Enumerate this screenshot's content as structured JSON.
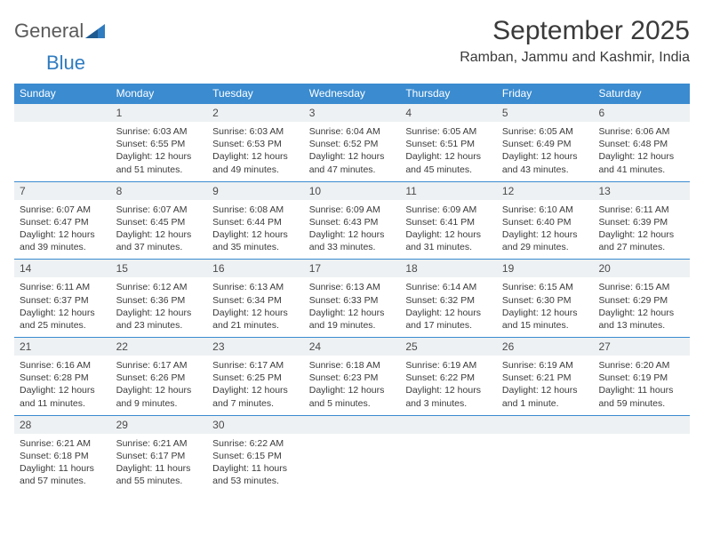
{
  "logo": {
    "text1": "General",
    "text2": "Blue"
  },
  "title": "September 2025",
  "location": "Ramban, Jammu and Kashmir, India",
  "colors": {
    "header_bg": "#3a8bd0",
    "header_text": "#ffffff",
    "daynum_bg": "#eef1f3",
    "body_text": "#3a3a3a",
    "divider": "#3a8bd0",
    "logo_blue": "#2f7cc0"
  },
  "typography": {
    "title_fontsize": 30,
    "location_fontsize": 16,
    "dow_fontsize": 12,
    "body_fontsize": 10.5
  },
  "days_of_week": [
    "Sunday",
    "Monday",
    "Tuesday",
    "Wednesday",
    "Thursday",
    "Friday",
    "Saturday"
  ],
  "weeks": [
    [
      {
        "n": "",
        "sr": "",
        "ss": "",
        "dl": ""
      },
      {
        "n": "1",
        "sr": "Sunrise: 6:03 AM",
        "ss": "Sunset: 6:55 PM",
        "dl": "Daylight: 12 hours and 51 minutes."
      },
      {
        "n": "2",
        "sr": "Sunrise: 6:03 AM",
        "ss": "Sunset: 6:53 PM",
        "dl": "Daylight: 12 hours and 49 minutes."
      },
      {
        "n": "3",
        "sr": "Sunrise: 6:04 AM",
        "ss": "Sunset: 6:52 PM",
        "dl": "Daylight: 12 hours and 47 minutes."
      },
      {
        "n": "4",
        "sr": "Sunrise: 6:05 AM",
        "ss": "Sunset: 6:51 PM",
        "dl": "Daylight: 12 hours and 45 minutes."
      },
      {
        "n": "5",
        "sr": "Sunrise: 6:05 AM",
        "ss": "Sunset: 6:49 PM",
        "dl": "Daylight: 12 hours and 43 minutes."
      },
      {
        "n": "6",
        "sr": "Sunrise: 6:06 AM",
        "ss": "Sunset: 6:48 PM",
        "dl": "Daylight: 12 hours and 41 minutes."
      }
    ],
    [
      {
        "n": "7",
        "sr": "Sunrise: 6:07 AM",
        "ss": "Sunset: 6:47 PM",
        "dl": "Daylight: 12 hours and 39 minutes."
      },
      {
        "n": "8",
        "sr": "Sunrise: 6:07 AM",
        "ss": "Sunset: 6:45 PM",
        "dl": "Daylight: 12 hours and 37 minutes."
      },
      {
        "n": "9",
        "sr": "Sunrise: 6:08 AM",
        "ss": "Sunset: 6:44 PM",
        "dl": "Daylight: 12 hours and 35 minutes."
      },
      {
        "n": "10",
        "sr": "Sunrise: 6:09 AM",
        "ss": "Sunset: 6:43 PM",
        "dl": "Daylight: 12 hours and 33 minutes."
      },
      {
        "n": "11",
        "sr": "Sunrise: 6:09 AM",
        "ss": "Sunset: 6:41 PM",
        "dl": "Daylight: 12 hours and 31 minutes."
      },
      {
        "n": "12",
        "sr": "Sunrise: 6:10 AM",
        "ss": "Sunset: 6:40 PM",
        "dl": "Daylight: 12 hours and 29 minutes."
      },
      {
        "n": "13",
        "sr": "Sunrise: 6:11 AM",
        "ss": "Sunset: 6:39 PM",
        "dl": "Daylight: 12 hours and 27 minutes."
      }
    ],
    [
      {
        "n": "14",
        "sr": "Sunrise: 6:11 AM",
        "ss": "Sunset: 6:37 PM",
        "dl": "Daylight: 12 hours and 25 minutes."
      },
      {
        "n": "15",
        "sr": "Sunrise: 6:12 AM",
        "ss": "Sunset: 6:36 PM",
        "dl": "Daylight: 12 hours and 23 minutes."
      },
      {
        "n": "16",
        "sr": "Sunrise: 6:13 AM",
        "ss": "Sunset: 6:34 PM",
        "dl": "Daylight: 12 hours and 21 minutes."
      },
      {
        "n": "17",
        "sr": "Sunrise: 6:13 AM",
        "ss": "Sunset: 6:33 PM",
        "dl": "Daylight: 12 hours and 19 minutes."
      },
      {
        "n": "18",
        "sr": "Sunrise: 6:14 AM",
        "ss": "Sunset: 6:32 PM",
        "dl": "Daylight: 12 hours and 17 minutes."
      },
      {
        "n": "19",
        "sr": "Sunrise: 6:15 AM",
        "ss": "Sunset: 6:30 PM",
        "dl": "Daylight: 12 hours and 15 minutes."
      },
      {
        "n": "20",
        "sr": "Sunrise: 6:15 AM",
        "ss": "Sunset: 6:29 PM",
        "dl": "Daylight: 12 hours and 13 minutes."
      }
    ],
    [
      {
        "n": "21",
        "sr": "Sunrise: 6:16 AM",
        "ss": "Sunset: 6:28 PM",
        "dl": "Daylight: 12 hours and 11 minutes."
      },
      {
        "n": "22",
        "sr": "Sunrise: 6:17 AM",
        "ss": "Sunset: 6:26 PM",
        "dl": "Daylight: 12 hours and 9 minutes."
      },
      {
        "n": "23",
        "sr": "Sunrise: 6:17 AM",
        "ss": "Sunset: 6:25 PM",
        "dl": "Daylight: 12 hours and 7 minutes."
      },
      {
        "n": "24",
        "sr": "Sunrise: 6:18 AM",
        "ss": "Sunset: 6:23 PM",
        "dl": "Daylight: 12 hours and 5 minutes."
      },
      {
        "n": "25",
        "sr": "Sunrise: 6:19 AM",
        "ss": "Sunset: 6:22 PM",
        "dl": "Daylight: 12 hours and 3 minutes."
      },
      {
        "n": "26",
        "sr": "Sunrise: 6:19 AM",
        "ss": "Sunset: 6:21 PM",
        "dl": "Daylight: 12 hours and 1 minute."
      },
      {
        "n": "27",
        "sr": "Sunrise: 6:20 AM",
        "ss": "Sunset: 6:19 PM",
        "dl": "Daylight: 11 hours and 59 minutes."
      }
    ],
    [
      {
        "n": "28",
        "sr": "Sunrise: 6:21 AM",
        "ss": "Sunset: 6:18 PM",
        "dl": "Daylight: 11 hours and 57 minutes."
      },
      {
        "n": "29",
        "sr": "Sunrise: 6:21 AM",
        "ss": "Sunset: 6:17 PM",
        "dl": "Daylight: 11 hours and 55 minutes."
      },
      {
        "n": "30",
        "sr": "Sunrise: 6:22 AM",
        "ss": "Sunset: 6:15 PM",
        "dl": "Daylight: 11 hours and 53 minutes."
      },
      {
        "n": "",
        "sr": "",
        "ss": "",
        "dl": ""
      },
      {
        "n": "",
        "sr": "",
        "ss": "",
        "dl": ""
      },
      {
        "n": "",
        "sr": "",
        "ss": "",
        "dl": ""
      },
      {
        "n": "",
        "sr": "",
        "ss": "",
        "dl": ""
      }
    ]
  ]
}
